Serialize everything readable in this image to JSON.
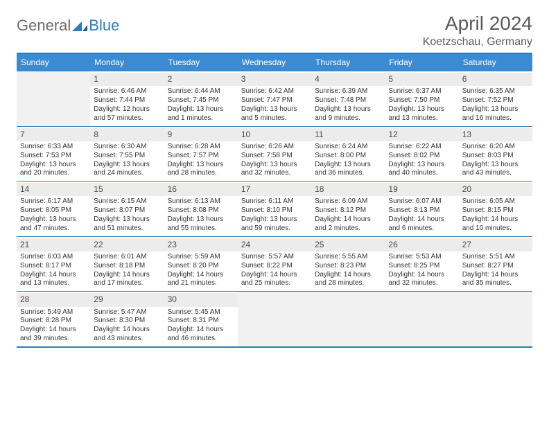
{
  "brand": {
    "part1": "General",
    "part2": "Blue"
  },
  "title": "April 2024",
  "location": "Koetzschau, Germany",
  "colors": {
    "brand_accent": "#2f7bbf",
    "header_bg": "#3b8bd2",
    "header_fg": "#ffffff",
    "cell_empty_bg": "#f1f1f1",
    "daynum_bg": "#ececec",
    "text": "#333333",
    "rule": "#2f7bbf"
  },
  "typography": {
    "title_size_pt": 21,
    "location_size_pt": 12,
    "dayhead_size_pt": 9,
    "daynum_size_pt": 9,
    "body_size_pt": 7.5,
    "logo_size_pt": 16
  },
  "layout": {
    "columns": 7,
    "rows": 5,
    "start_column": 1
  },
  "day_headers": [
    "Sunday",
    "Monday",
    "Tuesday",
    "Wednesday",
    "Thursday",
    "Friday",
    "Saturday"
  ],
  "days": [
    {
      "n": 1,
      "sun": "Sunrise: 6:46 AM",
      "set": "Sunset: 7:44 PM",
      "d1": "Daylight: 12 hours",
      "d2": "and 57 minutes."
    },
    {
      "n": 2,
      "sun": "Sunrise: 6:44 AM",
      "set": "Sunset: 7:45 PM",
      "d1": "Daylight: 13 hours",
      "d2": "and 1 minutes."
    },
    {
      "n": 3,
      "sun": "Sunrise: 6:42 AM",
      "set": "Sunset: 7:47 PM",
      "d1": "Daylight: 13 hours",
      "d2": "and 5 minutes."
    },
    {
      "n": 4,
      "sun": "Sunrise: 6:39 AM",
      "set": "Sunset: 7:48 PM",
      "d1": "Daylight: 13 hours",
      "d2": "and 9 minutes."
    },
    {
      "n": 5,
      "sun": "Sunrise: 6:37 AM",
      "set": "Sunset: 7:50 PM",
      "d1": "Daylight: 13 hours",
      "d2": "and 13 minutes."
    },
    {
      "n": 6,
      "sun": "Sunrise: 6:35 AM",
      "set": "Sunset: 7:52 PM",
      "d1": "Daylight: 13 hours",
      "d2": "and 16 minutes."
    },
    {
      "n": 7,
      "sun": "Sunrise: 6:33 AM",
      "set": "Sunset: 7:53 PM",
      "d1": "Daylight: 13 hours",
      "d2": "and 20 minutes."
    },
    {
      "n": 8,
      "sun": "Sunrise: 6:30 AM",
      "set": "Sunset: 7:55 PM",
      "d1": "Daylight: 13 hours",
      "d2": "and 24 minutes."
    },
    {
      "n": 9,
      "sun": "Sunrise: 6:28 AM",
      "set": "Sunset: 7:57 PM",
      "d1": "Daylight: 13 hours",
      "d2": "and 28 minutes."
    },
    {
      "n": 10,
      "sun": "Sunrise: 6:26 AM",
      "set": "Sunset: 7:58 PM",
      "d1": "Daylight: 13 hours",
      "d2": "and 32 minutes."
    },
    {
      "n": 11,
      "sun": "Sunrise: 6:24 AM",
      "set": "Sunset: 8:00 PM",
      "d1": "Daylight: 13 hours",
      "d2": "and 36 minutes."
    },
    {
      "n": 12,
      "sun": "Sunrise: 6:22 AM",
      "set": "Sunset: 8:02 PM",
      "d1": "Daylight: 13 hours",
      "d2": "and 40 minutes."
    },
    {
      "n": 13,
      "sun": "Sunrise: 6:20 AM",
      "set": "Sunset: 8:03 PM",
      "d1": "Daylight: 13 hours",
      "d2": "and 43 minutes."
    },
    {
      "n": 14,
      "sun": "Sunrise: 6:17 AM",
      "set": "Sunset: 8:05 PM",
      "d1": "Daylight: 13 hours",
      "d2": "and 47 minutes."
    },
    {
      "n": 15,
      "sun": "Sunrise: 6:15 AM",
      "set": "Sunset: 8:07 PM",
      "d1": "Daylight: 13 hours",
      "d2": "and 51 minutes."
    },
    {
      "n": 16,
      "sun": "Sunrise: 6:13 AM",
      "set": "Sunset: 8:08 PM",
      "d1": "Daylight: 13 hours",
      "d2": "and 55 minutes."
    },
    {
      "n": 17,
      "sun": "Sunrise: 6:11 AM",
      "set": "Sunset: 8:10 PM",
      "d1": "Daylight: 13 hours",
      "d2": "and 59 minutes."
    },
    {
      "n": 18,
      "sun": "Sunrise: 6:09 AM",
      "set": "Sunset: 8:12 PM",
      "d1": "Daylight: 14 hours",
      "d2": "and 2 minutes."
    },
    {
      "n": 19,
      "sun": "Sunrise: 6:07 AM",
      "set": "Sunset: 8:13 PM",
      "d1": "Daylight: 14 hours",
      "d2": "and 6 minutes."
    },
    {
      "n": 20,
      "sun": "Sunrise: 6:05 AM",
      "set": "Sunset: 8:15 PM",
      "d1": "Daylight: 14 hours",
      "d2": "and 10 minutes."
    },
    {
      "n": 21,
      "sun": "Sunrise: 6:03 AM",
      "set": "Sunset: 8:17 PM",
      "d1": "Daylight: 14 hours",
      "d2": "and 13 minutes."
    },
    {
      "n": 22,
      "sun": "Sunrise: 6:01 AM",
      "set": "Sunset: 8:18 PM",
      "d1": "Daylight: 14 hours",
      "d2": "and 17 minutes."
    },
    {
      "n": 23,
      "sun": "Sunrise: 5:59 AM",
      "set": "Sunset: 8:20 PM",
      "d1": "Daylight: 14 hours",
      "d2": "and 21 minutes."
    },
    {
      "n": 24,
      "sun": "Sunrise: 5:57 AM",
      "set": "Sunset: 8:22 PM",
      "d1": "Daylight: 14 hours",
      "d2": "and 25 minutes."
    },
    {
      "n": 25,
      "sun": "Sunrise: 5:55 AM",
      "set": "Sunset: 8:23 PM",
      "d1": "Daylight: 14 hours",
      "d2": "and 28 minutes."
    },
    {
      "n": 26,
      "sun": "Sunrise: 5:53 AM",
      "set": "Sunset: 8:25 PM",
      "d1": "Daylight: 14 hours",
      "d2": "and 32 minutes."
    },
    {
      "n": 27,
      "sun": "Sunrise: 5:51 AM",
      "set": "Sunset: 8:27 PM",
      "d1": "Daylight: 14 hours",
      "d2": "and 35 minutes."
    },
    {
      "n": 28,
      "sun": "Sunrise: 5:49 AM",
      "set": "Sunset: 8:28 PM",
      "d1": "Daylight: 14 hours",
      "d2": "and 39 minutes."
    },
    {
      "n": 29,
      "sun": "Sunrise: 5:47 AM",
      "set": "Sunset: 8:30 PM",
      "d1": "Daylight: 14 hours",
      "d2": "and 43 minutes."
    },
    {
      "n": 30,
      "sun": "Sunrise: 5:45 AM",
      "set": "Sunset: 8:31 PM",
      "d1": "Daylight: 14 hours",
      "d2": "and 46 minutes."
    }
  ]
}
